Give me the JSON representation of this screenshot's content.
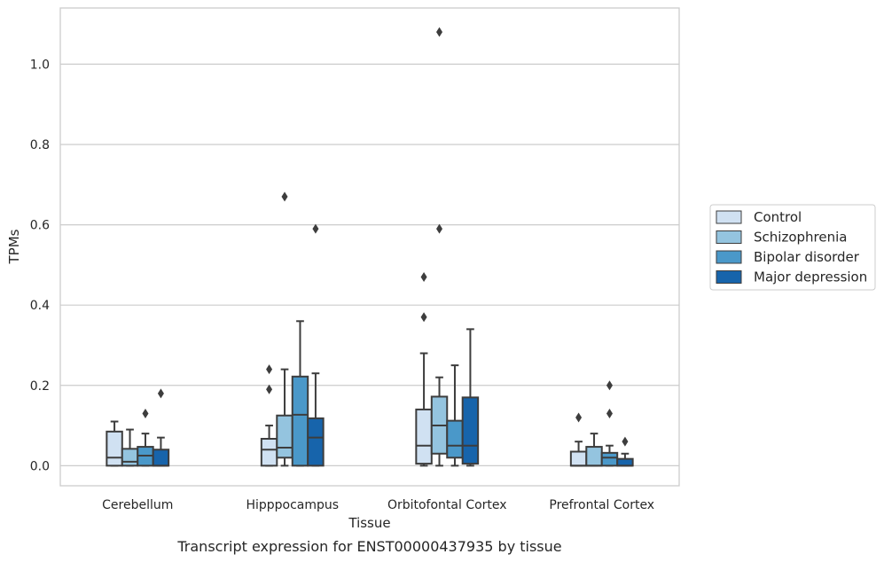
{
  "chart_data": {
    "type": "box",
    "caption": "Transcript expression for ENST00000437935 by tissue",
    "xlabel": "Tissue",
    "ylabel": "TPMs",
    "ylim": [
      -0.05,
      1.14
    ],
    "yticks": [
      "0.0",
      "0.2",
      "0.4",
      "0.6",
      "0.8",
      "1.0"
    ],
    "grid": "horizontal",
    "legend_position": "right",
    "categories": [
      "Cerebellum",
      "Hipppocampus",
      "Orbitofontal Cortex",
      "Prefrontal Cortex"
    ],
    "series": [
      {
        "name": "Control",
        "color": "#d0e1f2",
        "boxes": [
          {
            "min": 0.0,
            "q1": 0.0,
            "median": 0.02,
            "q3": 0.085,
            "max": 0.11,
            "outliers": []
          },
          {
            "min": 0.0,
            "q1": 0.0,
            "median": 0.04,
            "q3": 0.067,
            "max": 0.1,
            "outliers": [
              0.19,
              0.24
            ]
          },
          {
            "min": 0.0,
            "q1": 0.005,
            "median": 0.05,
            "q3": 0.14,
            "max": 0.28,
            "outliers": [
              0.37,
              0.47
            ]
          },
          {
            "min": 0.0,
            "q1": 0.0,
            "median": 0.0,
            "q3": 0.035,
            "max": 0.06,
            "outliers": [
              0.12
            ]
          }
        ]
      },
      {
        "name": "Schizophrenia",
        "color": "#94c4df",
        "boxes": [
          {
            "min": 0.0,
            "q1": 0.0,
            "median": 0.01,
            "q3": 0.042,
            "max": 0.09,
            "outliers": []
          },
          {
            "min": 0.0,
            "q1": 0.02,
            "median": 0.045,
            "q3": 0.125,
            "max": 0.24,
            "outliers": [
              0.67
            ]
          },
          {
            "min": 0.0,
            "q1": 0.03,
            "median": 0.1,
            "q3": 0.172,
            "max": 0.22,
            "outliers": [
              1.08,
              0.59
            ]
          },
          {
            "min": 0.0,
            "q1": 0.0,
            "median": 0.0,
            "q3": 0.047,
            "max": 0.08,
            "outliers": []
          }
        ]
      },
      {
        "name": "Bipolar disorder",
        "color": "#4a98c9",
        "boxes": [
          {
            "min": 0.0,
            "q1": 0.0,
            "median": 0.025,
            "q3": 0.047,
            "max": 0.08,
            "outliers": [
              0.13
            ]
          },
          {
            "min": 0.0,
            "q1": 0.0,
            "median": 0.127,
            "q3": 0.222,
            "max": 0.36,
            "outliers": []
          },
          {
            "min": 0.0,
            "q1": 0.02,
            "median": 0.05,
            "q3": 0.112,
            "max": 0.25,
            "outliers": []
          },
          {
            "min": 0.0,
            "q1": 0.0,
            "median": 0.02,
            "q3": 0.032,
            "max": 0.05,
            "outliers": [
              0.13,
              0.2
            ]
          }
        ]
      },
      {
        "name": "Major depression",
        "color": "#1764ab",
        "boxes": [
          {
            "min": 0.0,
            "q1": 0.0,
            "median": 0.0,
            "q3": 0.04,
            "max": 0.07,
            "outliers": [
              0.18
            ]
          },
          {
            "min": 0.0,
            "q1": 0.0,
            "median": 0.07,
            "q3": 0.118,
            "max": 0.23,
            "outliers": [
              0.59
            ]
          },
          {
            "min": 0.0,
            "q1": 0.005,
            "median": 0.05,
            "q3": 0.17,
            "max": 0.34,
            "outliers": []
          },
          {
            "min": 0.0,
            "q1": 0.0,
            "median": 0.0,
            "q3": 0.017,
            "max": 0.03,
            "outliers": [
              0.06
            ]
          }
        ]
      }
    ]
  }
}
